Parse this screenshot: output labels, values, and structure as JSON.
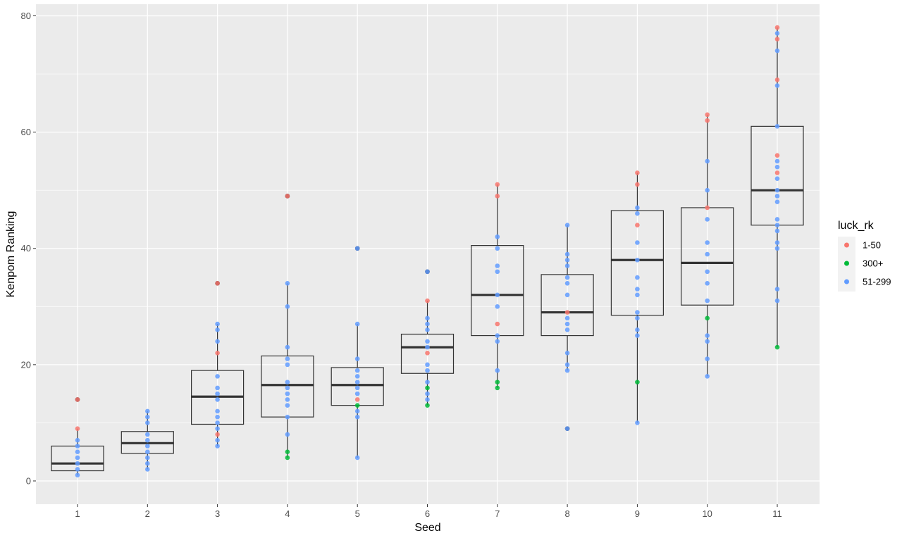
{
  "chart_data": {
    "type": "boxplot",
    "xlabel": "Seed",
    "ylabel": "Kenpom Ranking",
    "categories": [
      "1",
      "2",
      "3",
      "4",
      "5",
      "6",
      "7",
      "8",
      "9",
      "10",
      "11"
    ],
    "ylim": [
      -4,
      82
    ],
    "yticks": [
      0,
      20,
      40,
      60,
      80
    ],
    "grid": true,
    "background": "#ebebeb",
    "legend": {
      "title": "luck_rk",
      "placement": "right",
      "entries": [
        {
          "label": "1-50",
          "color": "#F8766D"
        },
        {
          "label": "300+",
          "color": "#00BA38"
        },
        {
          "label": "51-299",
          "color": "#619CFF"
        }
      ]
    },
    "boxes": [
      {
        "x": "1",
        "q1": 1.75,
        "median": 3,
        "q3": 6,
        "whisker_low": 1,
        "whisker_high": 9,
        "outliers": [
          14
        ]
      },
      {
        "x": "2",
        "q1": 4.75,
        "median": 6.5,
        "q3": 8.5,
        "whisker_low": 2,
        "whisker_high": 12,
        "outliers": []
      },
      {
        "x": "3",
        "q1": 9.75,
        "median": 14.5,
        "q3": 19,
        "whisker_low": 6,
        "whisker_high": 27,
        "outliers": [
          34
        ]
      },
      {
        "x": "4",
        "q1": 11,
        "median": 16.5,
        "q3": 21.5,
        "whisker_low": 4,
        "whisker_high": 34,
        "outliers": [
          49
        ]
      },
      {
        "x": "5",
        "q1": 13,
        "median": 16.5,
        "q3": 19.5,
        "whisker_low": 4,
        "whisker_high": 27,
        "outliers": [
          40
        ]
      },
      {
        "x": "6",
        "q1": 18.5,
        "median": 23,
        "q3": 25.25,
        "whisker_low": 13,
        "whisker_high": 31,
        "outliers": [
          36
        ]
      },
      {
        "x": "7",
        "q1": 25,
        "median": 32,
        "q3": 40.5,
        "whisker_low": 16,
        "whisker_high": 51,
        "outliers": []
      },
      {
        "x": "8",
        "q1": 25,
        "median": 29,
        "q3": 35.5,
        "whisker_low": 19,
        "whisker_high": 44,
        "outliers": [
          9
        ]
      },
      {
        "x": "9",
        "q1": 28.5,
        "median": 38,
        "q3": 46.5,
        "whisker_low": 10,
        "whisker_high": 53,
        "outliers": []
      },
      {
        "x": "10",
        "q1": 30.25,
        "median": 37.5,
        "q3": 47,
        "whisker_low": 18,
        "whisker_high": 63,
        "outliers": []
      },
      {
        "x": "11",
        "q1": 44,
        "median": 50,
        "q3": 61,
        "whisker_low": 23,
        "whisker_high": 78,
        "outliers": []
      }
    ],
    "points": [
      {
        "x": "1",
        "y": 14,
        "group": "1-50"
      },
      {
        "x": "1",
        "y": 9,
        "group": "1-50"
      },
      {
        "x": "1",
        "y": 7,
        "group": "51-299"
      },
      {
        "x": "1",
        "y": 6,
        "group": "51-299"
      },
      {
        "x": "1",
        "y": 5,
        "group": "51-299"
      },
      {
        "x": "1",
        "y": 4,
        "group": "51-299"
      },
      {
        "x": "1",
        "y": 3,
        "group": "51-299"
      },
      {
        "x": "1",
        "y": 2,
        "group": "51-299"
      },
      {
        "x": "1",
        "y": 1,
        "group": "51-299"
      },
      {
        "x": "2",
        "y": 12,
        "group": "51-299"
      },
      {
        "x": "2",
        "y": 11,
        "group": "51-299"
      },
      {
        "x": "2",
        "y": 10,
        "group": "51-299"
      },
      {
        "x": "2",
        "y": 8,
        "group": "51-299"
      },
      {
        "x": "2",
        "y": 7,
        "group": "51-299"
      },
      {
        "x": "2",
        "y": 6,
        "group": "51-299"
      },
      {
        "x": "2",
        "y": 5,
        "group": "51-299"
      },
      {
        "x": "2",
        "y": 4,
        "group": "51-299"
      },
      {
        "x": "2",
        "y": 3,
        "group": "51-299"
      },
      {
        "x": "2",
        "y": 2,
        "group": "51-299"
      },
      {
        "x": "3",
        "y": 34,
        "group": "1-50"
      },
      {
        "x": "3",
        "y": 27,
        "group": "51-299"
      },
      {
        "x": "3",
        "y": 26,
        "group": "51-299"
      },
      {
        "x": "3",
        "y": 24,
        "group": "51-299"
      },
      {
        "x": "3",
        "y": 22,
        "group": "1-50"
      },
      {
        "x": "3",
        "y": 18,
        "group": "51-299"
      },
      {
        "x": "3",
        "y": 16,
        "group": "51-299"
      },
      {
        "x": "3",
        "y": 15,
        "group": "51-299"
      },
      {
        "x": "3",
        "y": 14,
        "group": "51-299"
      },
      {
        "x": "3",
        "y": 12,
        "group": "51-299"
      },
      {
        "x": "3",
        "y": 11,
        "group": "51-299"
      },
      {
        "x": "3",
        "y": 10,
        "group": "51-299"
      },
      {
        "x": "3",
        "y": 9,
        "group": "51-299"
      },
      {
        "x": "3",
        "y": 8,
        "group": "1-50"
      },
      {
        "x": "3",
        "y": 7,
        "group": "51-299"
      },
      {
        "x": "3",
        "y": 6,
        "group": "51-299"
      },
      {
        "x": "4",
        "y": 49,
        "group": "1-50"
      },
      {
        "x": "4",
        "y": 34,
        "group": "51-299"
      },
      {
        "x": "4",
        "y": 30,
        "group": "51-299"
      },
      {
        "x": "4",
        "y": 23,
        "group": "51-299"
      },
      {
        "x": "4",
        "y": 21,
        "group": "51-299"
      },
      {
        "x": "4",
        "y": 20,
        "group": "51-299"
      },
      {
        "x": "4",
        "y": 17,
        "group": "51-299"
      },
      {
        "x": "4",
        "y": 16,
        "group": "51-299"
      },
      {
        "x": "4",
        "y": 15,
        "group": "51-299"
      },
      {
        "x": "4",
        "y": 14,
        "group": "51-299"
      },
      {
        "x": "4",
        "y": 13,
        "group": "51-299"
      },
      {
        "x": "4",
        "y": 11,
        "group": "51-299"
      },
      {
        "x": "4",
        "y": 8,
        "group": "51-299"
      },
      {
        "x": "4",
        "y": 5,
        "group": "300+"
      },
      {
        "x": "4",
        "y": 4,
        "group": "300+"
      },
      {
        "x": "5",
        "y": 40,
        "group": "51-299"
      },
      {
        "x": "5",
        "y": 27,
        "group": "51-299"
      },
      {
        "x": "5",
        "y": 21,
        "group": "51-299"
      },
      {
        "x": "5",
        "y": 19,
        "group": "51-299"
      },
      {
        "x": "5",
        "y": 18,
        "group": "51-299"
      },
      {
        "x": "5",
        "y": 17,
        "group": "51-299"
      },
      {
        "x": "5",
        "y": 16,
        "group": "51-299"
      },
      {
        "x": "5",
        "y": 15,
        "group": "51-299"
      },
      {
        "x": "5",
        "y": 14,
        "group": "1-50"
      },
      {
        "x": "5",
        "y": 13,
        "group": "300+"
      },
      {
        "x": "5",
        "y": 12,
        "group": "51-299"
      },
      {
        "x": "5",
        "y": 11,
        "group": "51-299"
      },
      {
        "x": "5",
        "y": 4,
        "group": "51-299"
      },
      {
        "x": "6",
        "y": 36,
        "group": "51-299"
      },
      {
        "x": "6",
        "y": 31,
        "group": "1-50"
      },
      {
        "x": "6",
        "y": 28,
        "group": "51-299"
      },
      {
        "x": "6",
        "y": 27,
        "group": "51-299"
      },
      {
        "x": "6",
        "y": 26,
        "group": "51-299"
      },
      {
        "x": "6",
        "y": 24,
        "group": "51-299"
      },
      {
        "x": "6",
        "y": 23,
        "group": "51-299"
      },
      {
        "x": "6",
        "y": 22,
        "group": "1-50"
      },
      {
        "x": "6",
        "y": 20,
        "group": "51-299"
      },
      {
        "x": "6",
        "y": 19,
        "group": "51-299"
      },
      {
        "x": "6",
        "y": 17,
        "group": "51-299"
      },
      {
        "x": "6",
        "y": 16,
        "group": "300+"
      },
      {
        "x": "6",
        "y": 15,
        "group": "51-299"
      },
      {
        "x": "6",
        "y": 14,
        "group": "51-299"
      },
      {
        "x": "6",
        "y": 13,
        "group": "300+"
      },
      {
        "x": "7",
        "y": 51,
        "group": "1-50"
      },
      {
        "x": "7",
        "y": 49,
        "group": "1-50"
      },
      {
        "x": "7",
        "y": 42,
        "group": "51-299"
      },
      {
        "x": "7",
        "y": 40,
        "group": "51-299"
      },
      {
        "x": "7",
        "y": 37,
        "group": "51-299"
      },
      {
        "x": "7",
        "y": 36,
        "group": "51-299"
      },
      {
        "x": "7",
        "y": 32,
        "group": "51-299"
      },
      {
        "x": "7",
        "y": 30,
        "group": "51-299"
      },
      {
        "x": "7",
        "y": 27,
        "group": "1-50"
      },
      {
        "x": "7",
        "y": 25,
        "group": "51-299"
      },
      {
        "x": "7",
        "y": 24,
        "group": "51-299"
      },
      {
        "x": "7",
        "y": 19,
        "group": "51-299"
      },
      {
        "x": "7",
        "y": 17,
        "group": "300+"
      },
      {
        "x": "7",
        "y": 16,
        "group": "300+"
      },
      {
        "x": "8",
        "y": 44,
        "group": "51-299"
      },
      {
        "x": "8",
        "y": 39,
        "group": "51-299"
      },
      {
        "x": "8",
        "y": 38,
        "group": "51-299"
      },
      {
        "x": "8",
        "y": 37,
        "group": "51-299"
      },
      {
        "x": "8",
        "y": 35,
        "group": "51-299"
      },
      {
        "x": "8",
        "y": 34,
        "group": "51-299"
      },
      {
        "x": "8",
        "y": 32,
        "group": "51-299"
      },
      {
        "x": "8",
        "y": 29,
        "group": "1-50"
      },
      {
        "x": "8",
        "y": 28,
        "group": "51-299"
      },
      {
        "x": "8",
        "y": 27,
        "group": "51-299"
      },
      {
        "x": "8",
        "y": 26,
        "group": "51-299"
      },
      {
        "x": "8",
        "y": 22,
        "group": "51-299"
      },
      {
        "x": "8",
        "y": 20,
        "group": "51-299"
      },
      {
        "x": "8",
        "y": 19,
        "group": "51-299"
      },
      {
        "x": "8",
        "y": 9,
        "group": "51-299"
      },
      {
        "x": "9",
        "y": 53,
        "group": "1-50"
      },
      {
        "x": "9",
        "y": 51,
        "group": "1-50"
      },
      {
        "x": "9",
        "y": 47,
        "group": "51-299"
      },
      {
        "x": "9",
        "y": 46,
        "group": "51-299"
      },
      {
        "x": "9",
        "y": 44,
        "group": "1-50"
      },
      {
        "x": "9",
        "y": 41,
        "group": "51-299"
      },
      {
        "x": "9",
        "y": 38,
        "group": "51-299"
      },
      {
        "x": "9",
        "y": 35,
        "group": "51-299"
      },
      {
        "x": "9",
        "y": 33,
        "group": "51-299"
      },
      {
        "x": "9",
        "y": 32,
        "group": "51-299"
      },
      {
        "x": "9",
        "y": 29,
        "group": "51-299"
      },
      {
        "x": "9",
        "y": 28,
        "group": "51-299"
      },
      {
        "x": "9",
        "y": 26,
        "group": "51-299"
      },
      {
        "x": "9",
        "y": 25,
        "group": "51-299"
      },
      {
        "x": "9",
        "y": 17,
        "group": "300+"
      },
      {
        "x": "9",
        "y": 10,
        "group": "51-299"
      },
      {
        "x": "10",
        "y": 63,
        "group": "1-50"
      },
      {
        "x": "10",
        "y": 62,
        "group": "1-50"
      },
      {
        "x": "10",
        "y": 55,
        "group": "51-299"
      },
      {
        "x": "10",
        "y": 50,
        "group": "51-299"
      },
      {
        "x": "10",
        "y": 47,
        "group": "1-50"
      },
      {
        "x": "10",
        "y": 45,
        "group": "51-299"
      },
      {
        "x": "10",
        "y": 41,
        "group": "51-299"
      },
      {
        "x": "10",
        "y": 39,
        "group": "51-299"
      },
      {
        "x": "10",
        "y": 36,
        "group": "51-299"
      },
      {
        "x": "10",
        "y": 34,
        "group": "51-299"
      },
      {
        "x": "10",
        "y": 31,
        "group": "51-299"
      },
      {
        "x": "10",
        "y": 28,
        "group": "300+"
      },
      {
        "x": "10",
        "y": 25,
        "group": "51-299"
      },
      {
        "x": "10",
        "y": 24,
        "group": "51-299"
      },
      {
        "x": "10",
        "y": 21,
        "group": "51-299"
      },
      {
        "x": "10",
        "y": 18,
        "group": "51-299"
      },
      {
        "x": "11",
        "y": 78,
        "group": "1-50"
      },
      {
        "x": "11",
        "y": 77,
        "group": "51-299"
      },
      {
        "x": "11",
        "y": 76,
        "group": "1-50"
      },
      {
        "x": "11",
        "y": 74,
        "group": "51-299"
      },
      {
        "x": "11",
        "y": 69,
        "group": "1-50"
      },
      {
        "x": "11",
        "y": 68,
        "group": "51-299"
      },
      {
        "x": "11",
        "y": 61,
        "group": "51-299"
      },
      {
        "x": "11",
        "y": 56,
        "group": "1-50"
      },
      {
        "x": "11",
        "y": 55,
        "group": "51-299"
      },
      {
        "x": "11",
        "y": 54,
        "group": "51-299"
      },
      {
        "x": "11",
        "y": 53,
        "group": "1-50"
      },
      {
        "x": "11",
        "y": 52,
        "group": "51-299"
      },
      {
        "x": "11",
        "y": 50,
        "group": "51-299"
      },
      {
        "x": "11",
        "y": 49,
        "group": "51-299"
      },
      {
        "x": "11",
        "y": 48,
        "group": "51-299"
      },
      {
        "x": "11",
        "y": 45,
        "group": "51-299"
      },
      {
        "x": "11",
        "y": 44,
        "group": "51-299"
      },
      {
        "x": "11",
        "y": 43,
        "group": "51-299"
      },
      {
        "x": "11",
        "y": 41,
        "group": "51-299"
      },
      {
        "x": "11",
        "y": 40,
        "group": "51-299"
      },
      {
        "x": "11",
        "y": 33,
        "group": "51-299"
      },
      {
        "x": "11",
        "y": 31,
        "group": "51-299"
      },
      {
        "x": "11",
        "y": 23,
        "group": "300+"
      }
    ]
  }
}
